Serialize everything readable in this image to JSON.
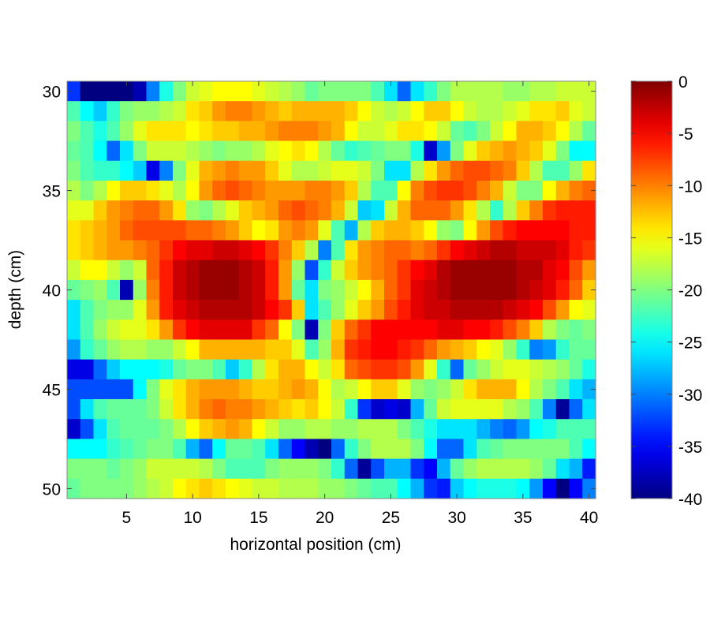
{
  "chart_data": {
    "type": "heatmap",
    "title": "",
    "xlabel": "horizontal position  (cm)",
    "ylabel": "depth (cm)",
    "x": [
      1,
      2,
      3,
      4,
      5,
      6,
      7,
      8,
      9,
      10,
      11,
      12,
      13,
      14,
      15,
      16,
      17,
      18,
      19,
      20,
      21,
      22,
      23,
      24,
      25,
      26,
      27,
      28,
      29,
      30,
      31,
      32,
      33,
      34,
      35,
      36,
      37,
      38,
      39,
      40
    ],
    "y": [
      30,
      31,
      32,
      33,
      34,
      35,
      36,
      37,
      38,
      39,
      40,
      41,
      42,
      43,
      44,
      45,
      46,
      47,
      48,
      49,
      50
    ],
    "xlim": [
      0.5,
      40.5
    ],
    "ylim": [
      29.5,
      50.5
    ],
    "xticks": [
      5,
      10,
      15,
      20,
      25,
      30,
      35,
      40
    ],
    "yticks": [
      30,
      35,
      40,
      45,
      50
    ],
    "colormap": "jet",
    "clim": [
      -40,
      0
    ],
    "colorbar_ticks": [
      0,
      -5,
      -10,
      -15,
      -20,
      -25,
      -30,
      -35,
      -40
    ],
    "values": [
      [
        -33,
        -40,
        -40,
        -40,
        -40,
        -38,
        -30,
        -24,
        -20,
        -17,
        -16,
        -15,
        -15,
        -15,
        -16,
        -17,
        -18,
        -19,
        -21,
        -20,
        -20,
        -20,
        -20,
        -22,
        -26,
        -31,
        -26,
        -23,
        -20,
        -18,
        -18,
        -18,
        -18,
        -19,
        -19,
        -18,
        -18,
        -17,
        -17,
        -17
      ],
      [
        -22,
        -25,
        -27,
        -23,
        -20,
        -19,
        -19,
        -18,
        -17,
        -14,
        -13,
        -11,
        -10,
        -10,
        -11,
        -12,
        -13,
        -12,
        -12,
        -12,
        -12,
        -13,
        -15,
        -17,
        -18,
        -17,
        -15,
        -13,
        -13,
        -15,
        -17,
        -18,
        -18,
        -17,
        -16,
        -14,
        -14,
        -13,
        -16,
        -17
      ],
      [
        -20,
        -22,
        -24,
        -22,
        -19,
        -16,
        -14,
        -14,
        -14,
        -15,
        -14,
        -13,
        -13,
        -12,
        -12,
        -11,
        -10,
        -10,
        -10,
        -11,
        -12,
        -15,
        -17,
        -17,
        -16,
        -14,
        -14,
        -15,
        -17,
        -21,
        -22,
        -20,
        -17,
        -15,
        -12,
        -12,
        -13,
        -15,
        -18,
        -21
      ],
      [
        -21,
        -22,
        -25,
        -31,
        -26,
        -20,
        -17,
        -17,
        -17,
        -18,
        -19,
        -20,
        -19,
        -19,
        -18,
        -16,
        -15,
        -14,
        -15,
        -18,
        -21,
        -23,
        -22,
        -21,
        -20,
        -20,
        -24,
        -37,
        -29,
        -20,
        -16,
        -13,
        -12,
        -11,
        -12,
        -13,
        -16,
        -20,
        -25,
        -25
      ],
      [
        -20,
        -22,
        -23,
        -23,
        -25,
        -27,
        -36,
        -30,
        -20,
        -16,
        -12,
        -11,
        -10,
        -11,
        -11,
        -13,
        -16,
        -18,
        -18,
        -17,
        -16,
        -16,
        -17,
        -20,
        -26,
        -26,
        -18,
        -14,
        -11,
        -9,
        -8,
        -8,
        -9,
        -10,
        -13,
        -18,
        -22,
        -22,
        -19,
        -14
      ],
      [
        -18,
        -20,
        -18,
        -15,
        -13,
        -13,
        -14,
        -16,
        -18,
        -15,
        -11,
        -9,
        -8,
        -9,
        -10,
        -11,
        -11,
        -11,
        -10,
        -10,
        -11,
        -13,
        -18,
        -22,
        -22,
        -15,
        -10,
        -8,
        -7,
        -7,
        -8,
        -10,
        -12,
        -17,
        -20,
        -20,
        -15,
        -12,
        -10,
        -9
      ],
      [
        -16,
        -16,
        -13,
        -11,
        -10,
        -9,
        -9,
        -11,
        -14,
        -19,
        -20,
        -18,
        -16,
        -13,
        -12,
        -11,
        -9,
        -8,
        -9,
        -10,
        -12,
        -17,
        -27,
        -26,
        -17,
        -12,
        -9,
        -9,
        -9,
        -11,
        -14,
        -18,
        -23,
        -18,
        -13,
        -10,
        -7,
        -6,
        -6,
        -6
      ],
      [
        -14,
        -13,
        -12,
        -11,
        -9,
        -8,
        -8,
        -8,
        -8,
        -9,
        -9,
        -10,
        -11,
        -13,
        -15,
        -14,
        -11,
        -10,
        -11,
        -16,
        -22,
        -28,
        -18,
        -13,
        -12,
        -12,
        -13,
        -15,
        -19,
        -20,
        -15,
        -11,
        -8,
        -6,
        -5,
        -5,
        -5,
        -5,
        -6,
        -6
      ],
      [
        -14,
        -13,
        -12,
        -11,
        -11,
        -10,
        -9,
        -7,
        -5,
        -4,
        -4,
        -3,
        -3,
        -4,
        -5,
        -7,
        -10,
        -13,
        -18,
        -30,
        -22,
        -14,
        -11,
        -10,
        -9,
        -9,
        -10,
        -9,
        -7,
        -5,
        -4,
        -3,
        -2,
        -2,
        -3,
        -3,
        -3,
        -4,
        -6,
        -7
      ],
      [
        -17,
        -15,
        -15,
        -17,
        -19,
        -17,
        -9,
        -6,
        -3,
        -2,
        -1,
        -1,
        -1,
        -2,
        -3,
        -6,
        -11,
        -19,
        -32,
        -23,
        -17,
        -13,
        -11,
        -10,
        -9,
        -7,
        -5,
        -4,
        -2,
        -1,
        -1,
        -1,
        -1,
        -1,
        -2,
        -2,
        -4,
        -5,
        -8,
        -11
      ],
      [
        -21,
        -20,
        -19,
        -22,
        -38,
        -19,
        -10,
        -6,
        -3,
        -2,
        -1,
        -1,
        -1,
        -2,
        -3,
        -6,
        -11,
        -21,
        -26,
        -20,
        -19,
        -17,
        -15,
        -12,
        -9,
        -7,
        -4,
        -3,
        -2,
        -1,
        -1,
        -1,
        -1,
        -1,
        -2,
        -3,
        -4,
        -6,
        -9,
        -13
      ],
      [
        -26,
        -22,
        -20,
        -19,
        -19,
        -16,
        -11,
        -6,
        -4,
        -3,
        -2,
        -2,
        -2,
        -2,
        -3,
        -5,
        -7,
        -13,
        -26,
        -22,
        -19,
        -16,
        -13,
        -11,
        -8,
        -6,
        -4,
        -3,
        -3,
        -2,
        -2,
        -2,
        -2,
        -3,
        -4,
        -5,
        -8,
        -11,
        -15,
        -16
      ],
      [
        -26,
        -22,
        -19,
        -17,
        -16,
        -16,
        -14,
        -11,
        -7,
        -5,
        -4,
        -4,
        -4,
        -4,
        -7,
        -9,
        -15,
        -20,
        -38,
        -20,
        -13,
        -9,
        -7,
        -5,
        -5,
        -5,
        -5,
        -5,
        -4,
        -4,
        -5,
        -5,
        -6,
        -8,
        -10,
        -13,
        -18,
        -20,
        -21,
        -20
      ],
      [
        -29,
        -23,
        -21,
        -19,
        -18,
        -18,
        -19,
        -19,
        -17,
        -15,
        -12,
        -12,
        -12,
        -12,
        -12,
        -13,
        -13,
        -16,
        -22,
        -19,
        -12,
        -7,
        -6,
        -5,
        -5,
        -6,
        -7,
        -9,
        -11,
        -12,
        -13,
        -15,
        -16,
        -19,
        -23,
        -30,
        -29,
        -23,
        -21,
        -21
      ],
      [
        -36,
        -36,
        -31,
        -27,
        -25,
        -25,
        -25,
        -24,
        -21,
        -20,
        -20,
        -22,
        -27,
        -23,
        -18,
        -14,
        -12,
        -12,
        -15,
        -17,
        -14,
        -9,
        -8,
        -7,
        -7,
        -8,
        -11,
        -16,
        -23,
        -31,
        -21,
        -19,
        -17,
        -16,
        -16,
        -17,
        -18,
        -19,
        -21,
        -24
      ],
      [
        -32,
        -32,
        -32,
        -32,
        -32,
        -25,
        -20,
        -16,
        -14,
        -12,
        -11,
        -11,
        -11,
        -12,
        -13,
        -13,
        -12,
        -11,
        -12,
        -15,
        -18,
        -17,
        -15,
        -13,
        -13,
        -16,
        -19,
        -20,
        -19,
        -17,
        -14,
        -12,
        -12,
        -12,
        -15,
        -18,
        -20,
        -22,
        -26,
        -28
      ],
      [
        -32,
        -26,
        -22,
        -21,
        -21,
        -21,
        -20,
        -17,
        -14,
        -12,
        -10,
        -9,
        -10,
        -10,
        -11,
        -12,
        -13,
        -14,
        -13,
        -15,
        -17,
        -23,
        -33,
        -37,
        -36,
        -37,
        -28,
        -21,
        -17,
        -16,
        -16,
        -16,
        -16,
        -18,
        -19,
        -22,
        -30,
        -39,
        -31,
        -26
      ],
      [
        -37,
        -32,
        -26,
        -22,
        -21,
        -21,
        -21,
        -20,
        -18,
        -15,
        -13,
        -12,
        -11,
        -12,
        -15,
        -17,
        -19,
        -19,
        -18,
        -18,
        -19,
        -19,
        -18,
        -18,
        -18,
        -20,
        -22,
        -24,
        -26,
        -26,
        -26,
        -28,
        -30,
        -31,
        -29,
        -25,
        -24,
        -22,
        -22,
        -22
      ],
      [
        -25,
        -25,
        -25,
        -23,
        -22,
        -21,
        -20,
        -20,
        -22,
        -28,
        -31,
        -25,
        -21,
        -21,
        -22,
        -26,
        -31,
        -35,
        -38,
        -40,
        -31,
        -23,
        -20,
        -18,
        -18,
        -18,
        -20,
        -25,
        -31,
        -31,
        -26,
        -22,
        -21,
        -20,
        -20,
        -20,
        -20,
        -20,
        -22,
        -25
      ],
      [
        -20,
        -20,
        -20,
        -21,
        -20,
        -19,
        -17,
        -17,
        -17,
        -17,
        -18,
        -20,
        -22,
        -22,
        -22,
        -20,
        -19,
        -19,
        -19,
        -20,
        -23,
        -31,
        -39,
        -32,
        -28,
        -28,
        -33,
        -35,
        -28,
        -21,
        -19,
        -18,
        -18,
        -18,
        -18,
        -19,
        -21,
        -26,
        -28,
        -34
      ],
      [
        -21,
        -20,
        -20,
        -20,
        -20,
        -19,
        -18,
        -17,
        -15,
        -14,
        -13,
        -14,
        -15,
        -16,
        -17,
        -17,
        -18,
        -18,
        -18,
        -19,
        -19,
        -20,
        -21,
        -22,
        -22,
        -25,
        -28,
        -33,
        -34,
        -27,
        -25,
        -24,
        -24,
        -24,
        -25,
        -29,
        -35,
        -40,
        -35,
        -30
      ]
    ]
  }
}
